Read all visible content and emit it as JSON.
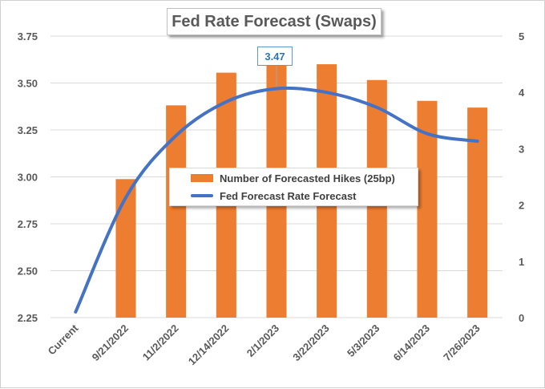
{
  "chart_data": {
    "type": "bar",
    "title": "Fed Rate Forecast (Swaps)",
    "categories": [
      "Current",
      "9/21/2022",
      "11/2/2022",
      "12/14/2022",
      "2/1/2023",
      "3/22/2023",
      "5/3/2023",
      "6/14/2023",
      "7/26/2023"
    ],
    "series": [
      {
        "name": "Number of Forecasted Hikes (25bp)",
        "type": "bar",
        "axis": "right",
        "values": [
          0,
          2.46,
          3.77,
          4.35,
          4.55,
          4.5,
          4.22,
          3.85,
          3.73
        ]
      },
      {
        "name": "Fed Forecast Rate Forecast",
        "type": "line",
        "axis": "left",
        "values": [
          2.28,
          2.89,
          3.22,
          3.4,
          3.47,
          3.45,
          3.37,
          3.23,
          3.19
        ]
      }
    ],
    "y_left": {
      "min": 2.25,
      "max": 3.75,
      "ticks": [
        "2.25",
        "2.50",
        "2.75",
        "3.00",
        "3.25",
        "3.50",
        "3.75"
      ]
    },
    "y_right": {
      "min": 0,
      "max": 5,
      "ticks": [
        "0",
        "1",
        "2",
        "3",
        "4",
        "5"
      ]
    },
    "annotation": {
      "text": "3.47",
      "category": "2/1/2023"
    },
    "legend": {
      "placement": "center"
    },
    "grid": true,
    "colors": {
      "bar": "#ed7d31",
      "line": "#4472c4",
      "grid": "#d9d9d9",
      "text": "#595959"
    }
  }
}
